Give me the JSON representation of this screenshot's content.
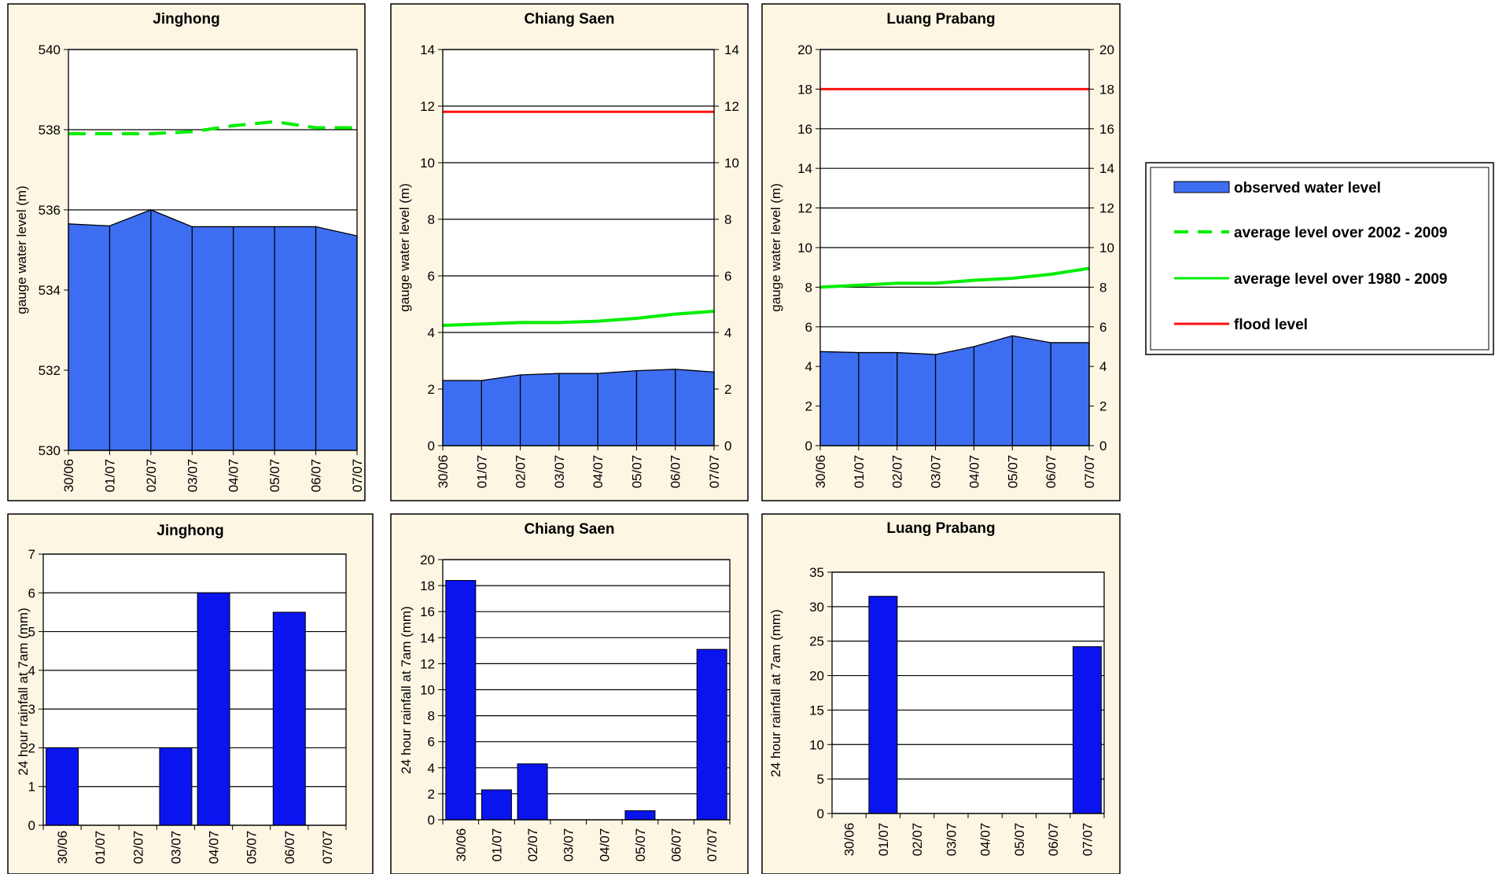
{
  "colors": {
    "panel_bg": "#fdf6e3",
    "water_fill": "#3d6ef2",
    "rain_fill": "#0a14ee",
    "avg_green": "#00ee00",
    "flood_red": "#ff1010",
    "grid": "#000000"
  },
  "legend": {
    "observed": "observed water level",
    "avg2002": "average level over 2002 - 2009",
    "avg1980": "average level over 1980 - 2009",
    "flood": "flood level"
  },
  "chart_data": [
    {
      "type": "area",
      "title": "Jinghong",
      "ylabel": "gauge water level (m)",
      "xlabel": "",
      "categories": [
        "30/06",
        "01/07",
        "02/07",
        "03/07",
        "04/07",
        "05/07",
        "06/07",
        "07/07"
      ],
      "ylim": [
        530,
        540
      ],
      "yticks": [
        530,
        532,
        534,
        536,
        538,
        540
      ],
      "right_axis": false,
      "grid": true,
      "series": [
        {
          "values": [
            535.65,
            535.6,
            536.0,
            535.58,
            535.58,
            535.58,
            535.58,
            535.35
          ]
        },
        {
          "values": [
            537.9,
            537.9,
            537.9,
            537.95,
            538.1,
            538.2,
            538.05,
            538.05
          ],
          "style": "dashed"
        }
      ]
    },
    {
      "type": "area",
      "title": "Chiang Saen",
      "ylabel": "gauge water level (m)",
      "xlabel": "",
      "categories": [
        "30/06",
        "01/07",
        "02/07",
        "03/07",
        "04/07",
        "05/07",
        "06/07",
        "07/07"
      ],
      "ylim": [
        0,
        14
      ],
      "yticks": [
        0,
        2,
        4,
        6,
        8,
        10,
        12,
        14
      ],
      "right_axis": true,
      "grid": true,
      "series": [
        {
          "values": [
            2.3,
            2.3,
            2.5,
            2.55,
            2.55,
            2.65,
            2.7,
            2.6
          ]
        },
        {
          "values": [
            4.25,
            4.3,
            4.35,
            4.35,
            4.4,
            4.5,
            4.65,
            4.75
          ]
        },
        {
          "values": [
            11.8,
            11.8,
            11.8,
            11.8,
            11.8,
            11.8,
            11.8,
            11.8
          ]
        }
      ]
    },
    {
      "type": "area",
      "title": "Luang Prabang",
      "ylabel": "gauge water level (m)",
      "xlabel": "",
      "categories": [
        "30/06",
        "01/07",
        "02/07",
        "03/07",
        "04/07",
        "05/07",
        "06/07",
        "07/07"
      ],
      "ylim": [
        0,
        20
      ],
      "yticks": [
        0,
        2,
        4,
        6,
        8,
        10,
        12,
        14,
        16,
        18,
        20
      ],
      "right_axis": true,
      "grid": true,
      "series": [
        {
          "values": [
            4.75,
            4.7,
            4.7,
            4.6,
            5.0,
            5.55,
            5.2,
            5.2
          ]
        },
        {
          "values": [
            8.0,
            8.1,
            8.2,
            8.2,
            8.35,
            8.45,
            8.65,
            8.95
          ]
        },
        {
          "values": [
            18.0,
            18.0,
            18.0,
            18.0,
            18.0,
            18.0,
            18.0,
            18.0
          ]
        }
      ]
    },
    {
      "type": "bar",
      "title": "Jinghong",
      "ylabel": "24 hour rainfall at 7am (mm)",
      "xlabel": "",
      "categories": [
        "30/06",
        "01/07",
        "02/07",
        "03/07",
        "04/07",
        "05/07",
        "06/07",
        "07/07"
      ],
      "ylim": [
        0,
        7
      ],
      "yticks": [
        0,
        1,
        2,
        3,
        4,
        5,
        6,
        7
      ],
      "ytick_labels": [
        "0",
        "1",
        "2",
        "3",
        "4",
        "5",
        "6",
        "7"
      ],
      "grid": true,
      "values": [
        2,
        0,
        0,
        2,
        6,
        0,
        5.5,
        0
      ]
    },
    {
      "type": "bar",
      "title": "Chiang Saen",
      "ylabel": "24 hour rainfall at 7am (mm)",
      "xlabel": "",
      "categories": [
        "30/06",
        "01/07",
        "02/07",
        "03/07",
        "04/07",
        "05/07",
        "06/07",
        "07/07"
      ],
      "ylim": [
        0,
        20
      ],
      "yticks": [
        0,
        2,
        4,
        6,
        8,
        10,
        12,
        14,
        16,
        18,
        20
      ],
      "grid": true,
      "values": [
        18.4,
        2.3,
        4.3,
        0,
        0,
        0.7,
        0,
        13.1
      ]
    },
    {
      "type": "bar",
      "title": "Luang Prabang",
      "ylabel": "24 hour rainfall at 7am (mm)",
      "xlabel": "",
      "categories": [
        "30/06",
        "01/07",
        "02/07",
        "03/07",
        "04/07",
        "05/07",
        "06/07",
        "07/07"
      ],
      "ylim": [
        0,
        35
      ],
      "yticks": [
        0,
        5,
        10,
        15,
        20,
        25,
        30,
        35
      ],
      "grid": true,
      "values": [
        0,
        31.5,
        0,
        0,
        0,
        0,
        0,
        24.2
      ]
    }
  ]
}
